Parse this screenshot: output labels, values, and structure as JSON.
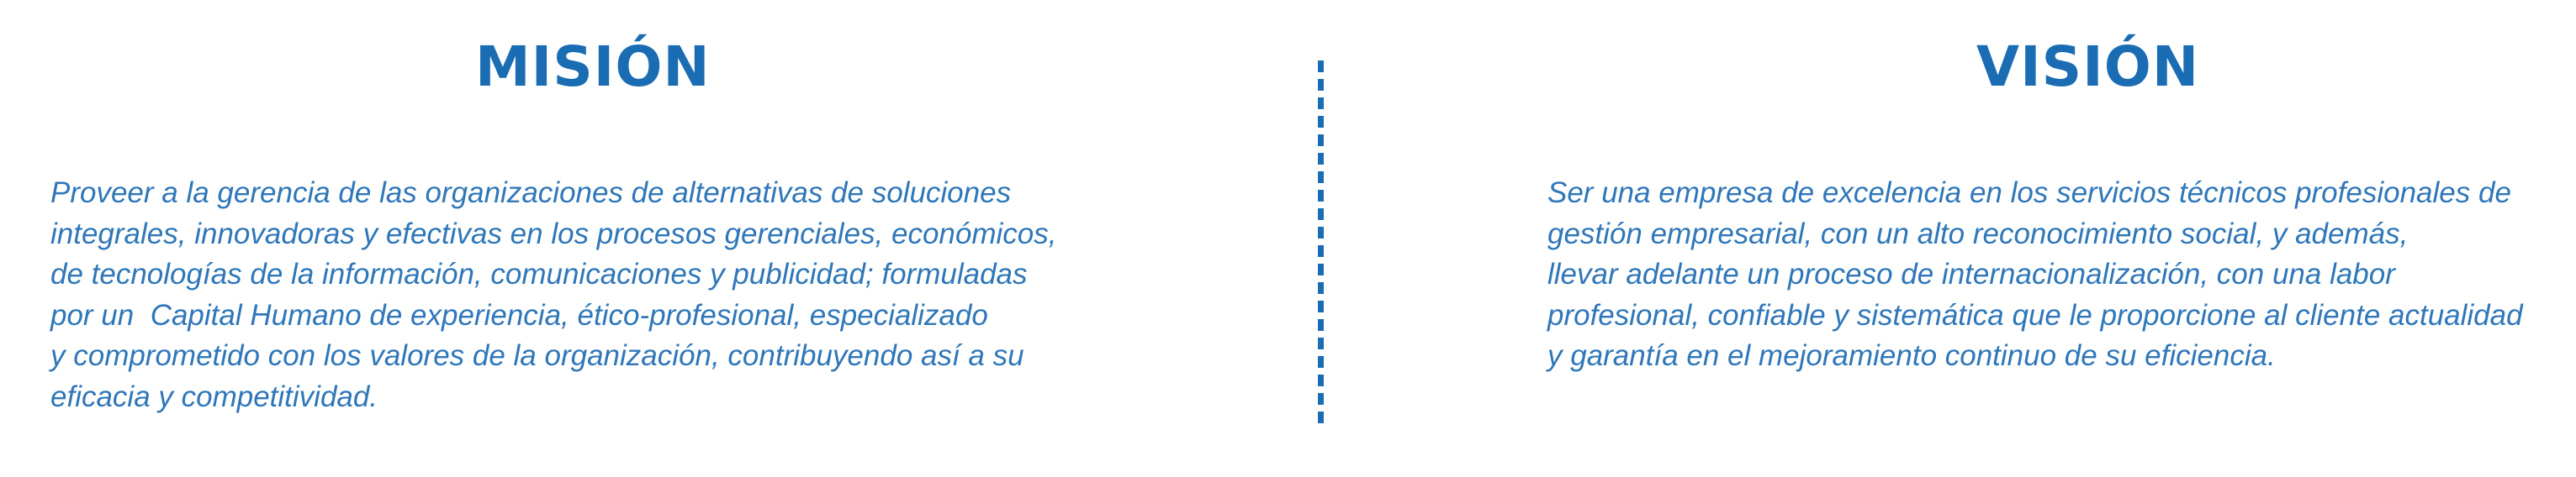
{
  "mision": {
    "title": "MISIÓN",
    "text": "Proveer a la gerencia de las organizaciones de alternativas de soluciones\nintegrales, innovadoras y efectivas en los procesos gerenciales, económicos,\nde tecnologías de la información, comunicaciones y publicidad; formuladas\npor un  Capital Humano de experiencia, ético-profesional, especializado\ny comprometido con los valores de la organización, contribuyendo así a su\neficacia y competitividad."
  },
  "vision": {
    "title": "VISIÓN",
    "text": "Ser una empresa de excelencia en los servicios técnicos profesionales de\ngestión empresarial, con un alto reconocimiento social, y además,\nllevar adelante un proceso de internacionalización, con una labor\nprofesional, confiable y sistemática que le proporcione al cliente actualidad\ny garantía en el mejoramiento continuo de su eficiencia."
  },
  "colors": {
    "heading": "#1a6db3",
    "text": "#2f77b9",
    "divider": "#1a6db3"
  }
}
